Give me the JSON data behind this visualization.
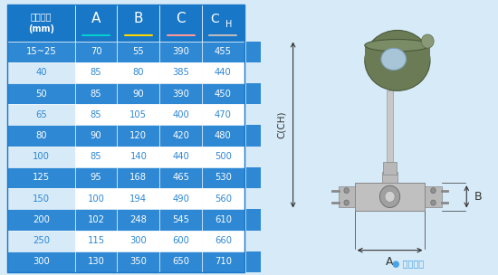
{
  "col_headers": [
    "仪表口径\n(mm)",
    "A",
    "B",
    "C",
    "CH"
  ],
  "col_underline_colors": [
    "none",
    "#00CFCF",
    "#FFD700",
    "#FF9999",
    "#BBBBBB"
  ],
  "rows": [
    [
      "15~25",
      "70",
      "55",
      "390",
      "455"
    ],
    [
      "40",
      "85",
      "80",
      "385",
      "440"
    ],
    [
      "50",
      "85",
      "90",
      "390",
      "450"
    ],
    [
      "65",
      "85",
      "105",
      "400",
      "470"
    ],
    [
      "80",
      "90",
      "120",
      "420",
      "480"
    ],
    [
      "100",
      "85",
      "140",
      "440",
      "500"
    ],
    [
      "125",
      "95",
      "168",
      "465",
      "530"
    ],
    [
      "150",
      "100",
      "194",
      "490",
      "560"
    ],
    [
      "200",
      "102",
      "248",
      "545",
      "610"
    ],
    [
      "250",
      "115",
      "300",
      "600",
      "660"
    ],
    [
      "300",
      "130",
      "350",
      "650",
      "710"
    ]
  ],
  "dark_blue": "#1977C8",
  "mid_blue": "#2E88D4",
  "light_blue": "#4BA3E3",
  "bg_color": "#D6EAF8",
  "row_bg_dark": "#2E88D4",
  "row_bg_light": "#FFFFFF",
  "text_white": "#FFFFFF",
  "text_blue": "#2E88D4",
  "header_bg": "#1977C8",
  "note_text": "● 常规仪表",
  "note_color": "#4BA3E3",
  "arrow_color": "#333333",
  "dim_label_C": "C(CH)",
  "dim_label_A": "A",
  "dim_label_B": "B"
}
